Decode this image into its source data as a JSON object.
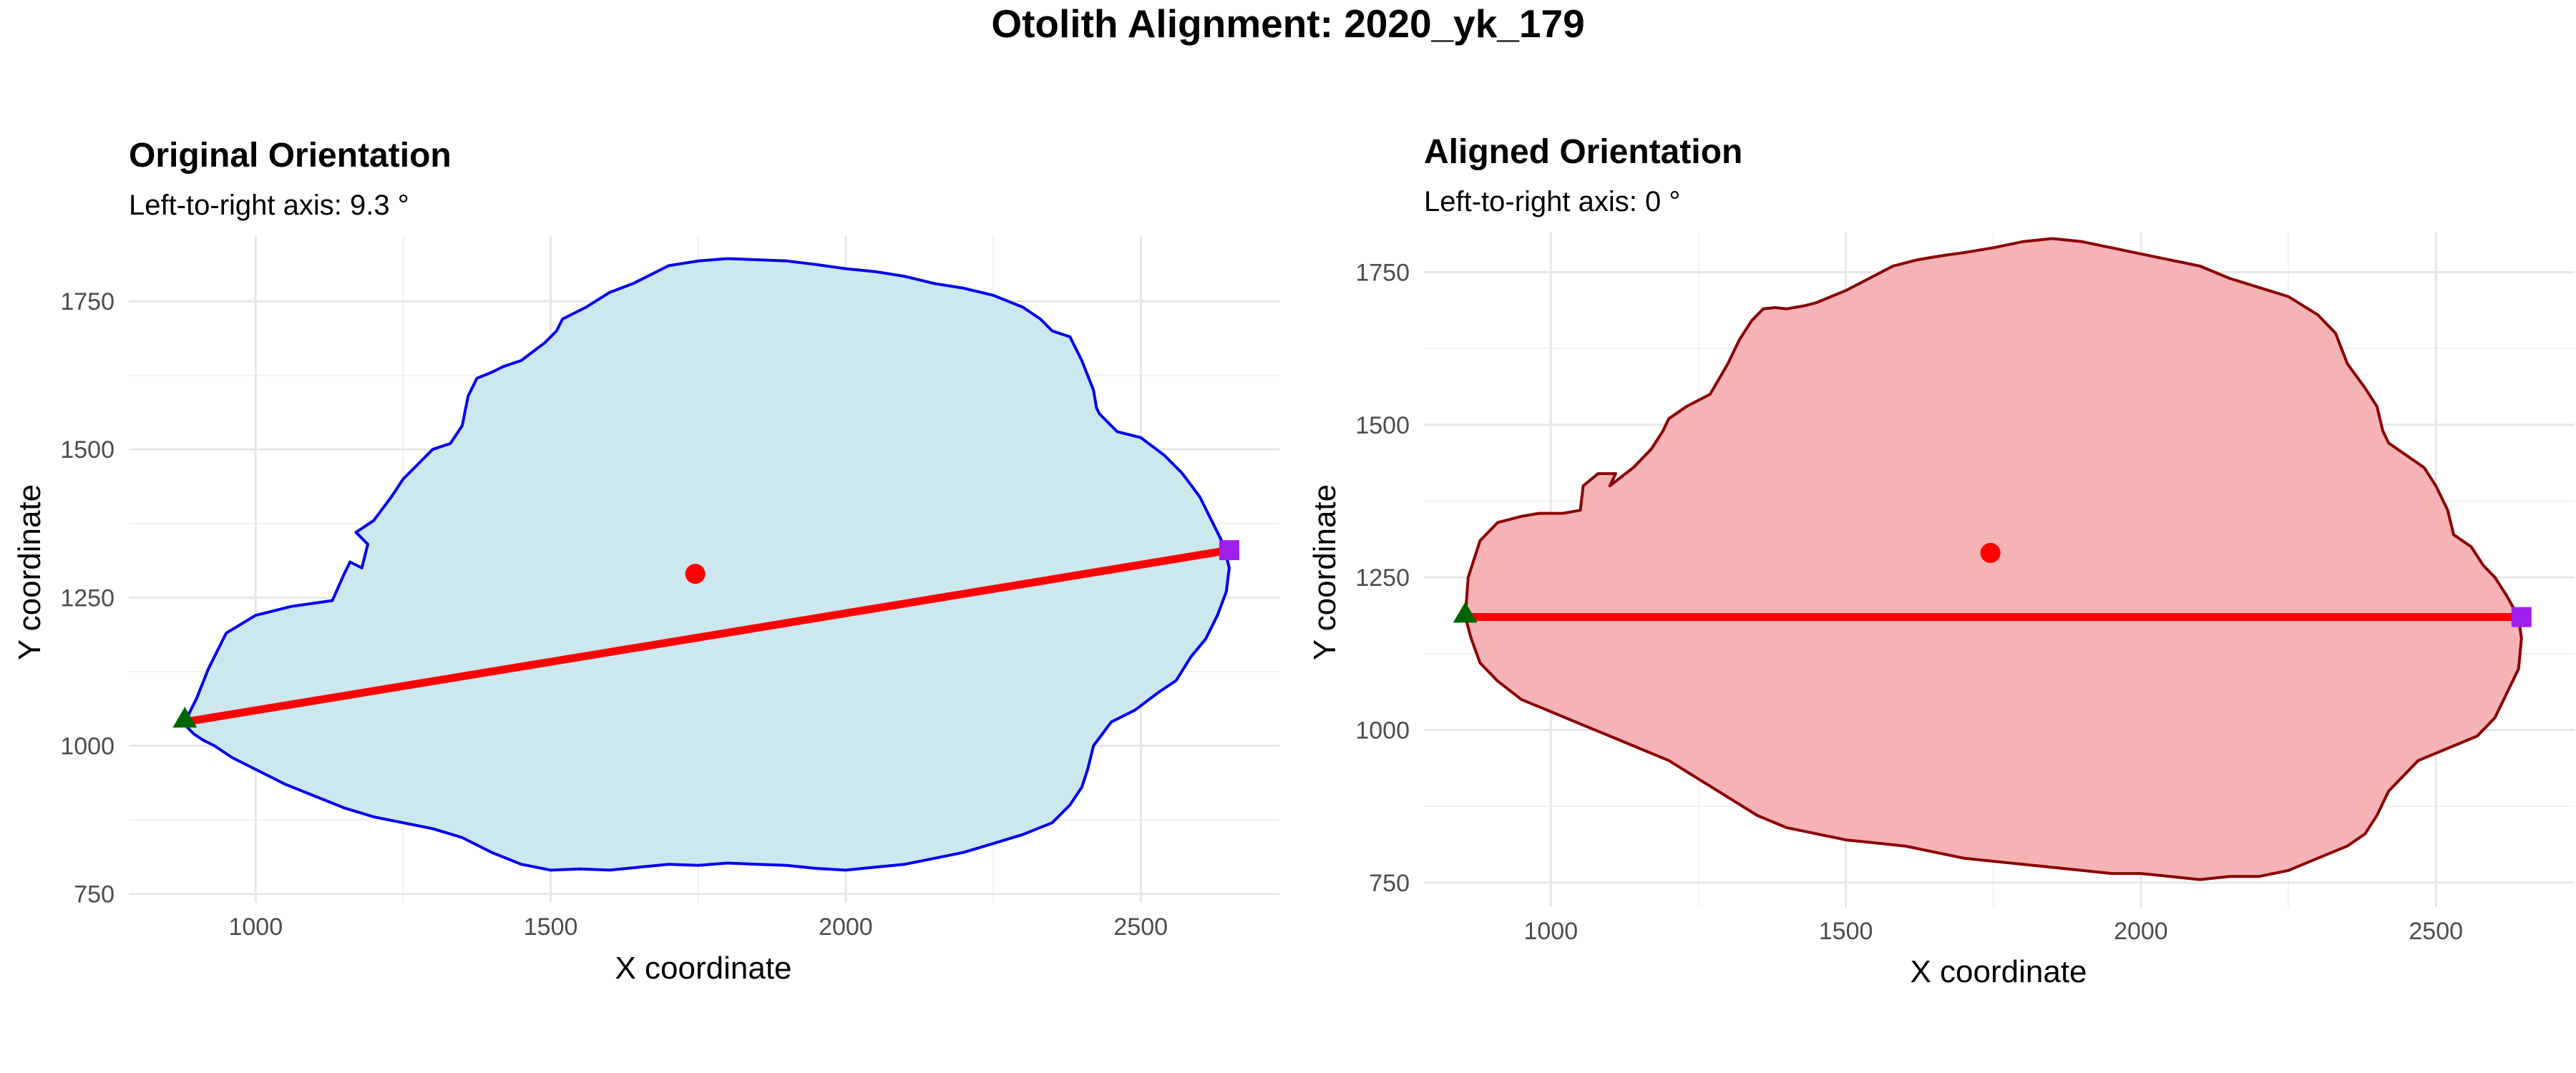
{
  "title": "Otolith Alignment: 2020_yk_179",
  "chart_data": [
    {
      "type": "scatter",
      "title": "Original Orientation",
      "subtitle": "Left-to-right axis: 9.3 °",
      "xlabel": "X coordinate",
      "ylabel": "Y coordinate",
      "xlim": [
        785,
        2735
      ],
      "ylim": [
        735,
        1860
      ],
      "xticks": [
        1000,
        1500,
        2000,
        2500
      ],
      "yticks": [
        750,
        1000,
        1250,
        1500,
        1750
      ],
      "grid": true,
      "colors": {
        "fill": "#cde7ef",
        "outline": "#0000ee",
        "axis_line": "#ff0000",
        "centroid": "#ff0000",
        "left_point": "#006400",
        "right_point": "#a020f0"
      },
      "outline": {
        "x": [
          880,
          900,
          920,
          950,
          1000,
          1060,
          1130,
          1150,
          1160,
          1180,
          1190,
          1170,
          1200,
          1230,
          1250,
          1270,
          1300,
          1330,
          1350,
          1360,
          1375,
          1400,
          1420,
          1450,
          1490,
          1510,
          1520,
          1560,
          1600,
          1640,
          1670,
          1700,
          1750,
          1800,
          1850,
          1900,
          1950,
          2000,
          2050,
          2100,
          2150,
          2200,
          2250,
          2300,
          2330,
          2350,
          2380,
          2400,
          2420,
          2425,
          2430,
          2460,
          2500,
          2540,
          2570,
          2600,
          2620,
          2640,
          2650,
          2645,
          2630,
          2610,
          2585,
          2560,
          2530,
          2490,
          2450,
          2420,
          2410,
          2400,
          2380,
          2350,
          2300,
          2250,
          2200,
          2150,
          2100,
          2050,
          2000,
          1950,
          1900,
          1850,
          1800,
          1750,
          1700,
          1650,
          1600,
          1550,
          1500,
          1450,
          1400,
          1350,
          1300,
          1250,
          1200,
          1150,
          1100,
          1050,
          1000,
          960,
          930,
          910,
          895,
          885,
          880
        ],
        "y": [
          1040,
          1080,
          1130,
          1190,
          1220,
          1235,
          1245,
          1290,
          1310,
          1300,
          1340,
          1360,
          1380,
          1420,
          1450,
          1470,
          1500,
          1510,
          1540,
          1590,
          1620,
          1630,
          1640,
          1650,
          1680,
          1700,
          1720,
          1740,
          1765,
          1780,
          1795,
          1810,
          1818,
          1822,
          1820,
          1818,
          1812,
          1805,
          1800,
          1792,
          1780,
          1772,
          1760,
          1740,
          1720,
          1700,
          1690,
          1650,
          1600,
          1570,
          1560,
          1530,
          1520,
          1490,
          1460,
          1420,
          1380,
          1340,
          1300,
          1260,
          1220,
          1180,
          1150,
          1110,
          1090,
          1060,
          1040,
          1000,
          960,
          930,
          900,
          870,
          850,
          835,
          820,
          810,
          800,
          795,
          790,
          793,
          798,
          800,
          802,
          798,
          800,
          795,
          790,
          792,
          790,
          800,
          820,
          845,
          860,
          870,
          880,
          895,
          915,
          935,
          960,
          980,
          1000,
          1010,
          1020,
          1030,
          1040
        ]
      },
      "axis_line": {
        "x": [
          880,
          2650
        ],
        "y": [
          1040,
          1330
        ]
      },
      "centroid": {
        "x": 1745,
        "y": 1290
      },
      "left_point": {
        "x": 880,
        "y": 1045
      },
      "right_point": {
        "x": 2650,
        "y": 1330
      }
    },
    {
      "type": "scatter",
      "title": "Aligned Orientation",
      "subtitle": "Left-to-right axis: 0 °",
      "xlabel": "X coordinate",
      "ylabel": "Y coordinate",
      "xlim": [
        785,
        2735
      ],
      "ylim": [
        710,
        1815
      ],
      "xticks": [
        1000,
        1500,
        2000,
        2500
      ],
      "yticks": [
        750,
        1000,
        1250,
        1500,
        1750
      ],
      "grid": true,
      "colors": {
        "fill": "#f5b3b5",
        "outline": "#8b0000",
        "axis_line": "#ff0000",
        "centroid": "#ff0000",
        "left_point": "#006400",
        "right_point": "#a020f0"
      },
      "outline": {
        "x": [
          855,
          860,
          880,
          910,
          950,
          980,
          1020,
          1050,
          1055,
          1080,
          1110,
          1100,
          1140,
          1170,
          1190,
          1200,
          1230,
          1270,
          1300,
          1320,
          1340,
          1360,
          1380,
          1400,
          1430,
          1450,
          1500,
          1540,
          1580,
          1620,
          1650,
          1670,
          1700,
          1750,
          1800,
          1850,
          1900,
          1950,
          2000,
          2050,
          2100,
          2150,
          2200,
          2250,
          2300,
          2330,
          2350,
          2380,
          2400,
          2410,
          2420,
          2450,
          2480,
          2500,
          2520,
          2530,
          2560,
          2580,
          2600,
          2620,
          2640,
          2645,
          2640,
          2620,
          2600,
          2570,
          2520,
          2470,
          2420,
          2400,
          2380,
          2350,
          2300,
          2250,
          2200,
          2150,
          2100,
          2050,
          2000,
          1950,
          1900,
          1850,
          1800,
          1750,
          1700,
          1650,
          1600,
          1550,
          1500,
          1450,
          1400,
          1350,
          1300,
          1250,
          1200,
          1150,
          1100,
          1050,
          1000,
          950,
          910,
          880,
          865,
          855
        ],
        "y": [
          1185,
          1250,
          1310,
          1340,
          1350,
          1355,
          1355,
          1360,
          1400,
          1420,
          1420,
          1400,
          1430,
          1460,
          1490,
          1510,
          1530,
          1550,
          1600,
          1640,
          1670,
          1690,
          1692,
          1690,
          1695,
          1700,
          1720,
          1740,
          1760,
          1770,
          1775,
          1778,
          1782,
          1790,
          1800,
          1805,
          1800,
          1790,
          1780,
          1770,
          1760,
          1740,
          1725,
          1710,
          1680,
          1650,
          1600,
          1560,
          1530,
          1490,
          1470,
          1450,
          1430,
          1400,
          1360,
          1320,
          1300,
          1270,
          1250,
          1220,
          1185,
          1150,
          1100,
          1060,
          1020,
          990,
          970,
          950,
          900,
          860,
          830,
          810,
          790,
          770,
          760,
          760,
          755,
          760,
          765,
          765,
          770,
          775,
          780,
          785,
          790,
          800,
          810,
          815,
          820,
          830,
          840,
          860,
          890,
          920,
          950,
          970,
          990,
          1010,
          1030,
          1050,
          1080,
          1110,
          1150,
          1185
        ]
      },
      "axis_line": {
        "x": [
          855,
          2645
        ],
        "y": [
          1185,
          1185
        ]
      },
      "centroid": {
        "x": 1745,
        "y": 1290
      },
      "left_point": {
        "x": 855,
        "y": 1190
      },
      "right_point": {
        "x": 2645,
        "y": 1185
      }
    }
  ]
}
